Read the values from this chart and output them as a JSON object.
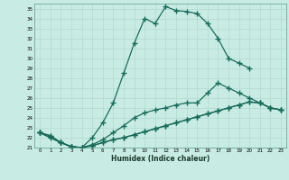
{
  "xlabel": "Humidex (Indice chaleur)",
  "bg_color": "#c8ece4",
  "line_color": "#1a6b5a",
  "grid_color": "#aad4cc",
  "xlim": [
    -0.5,
    23.5
  ],
  "ylim": [
    21,
    35.5
  ],
  "xticks": [
    0,
    1,
    2,
    3,
    4,
    5,
    6,
    7,
    8,
    9,
    10,
    11,
    12,
    13,
    14,
    15,
    16,
    17,
    18,
    19,
    20,
    21,
    22,
    23
  ],
  "yticks": [
    21,
    22,
    23,
    24,
    25,
    26,
    27,
    28,
    29,
    30,
    31,
    32,
    33,
    34,
    35
  ],
  "line1_x": [
    0,
    1,
    2,
    3,
    4,
    5,
    6,
    7,
    8,
    9,
    10,
    11,
    12,
    13,
    14,
    15,
    16,
    17,
    18,
    19,
    20
  ],
  "line1_y": [
    22.5,
    22.2,
    21.5,
    21.1,
    21.0,
    22.0,
    23.5,
    25.5,
    28.5,
    31.5,
    34.0,
    33.5,
    35.2,
    34.8,
    34.7,
    34.5,
    33.5,
    32.0,
    30.0,
    29.5,
    29.0
  ],
  "line2_x": [
    0,
    1,
    2,
    3,
    4,
    5,
    6,
    7,
    8,
    9,
    10,
    11,
    12,
    13,
    14,
    15,
    16,
    17,
    18,
    19,
    20,
    21,
    22,
    23
  ],
  "line2_y": [
    22.5,
    22.2,
    21.5,
    21.1,
    21.0,
    21.3,
    21.8,
    22.5,
    23.2,
    24.0,
    24.5,
    24.8,
    25.0,
    25.3,
    25.5,
    25.5,
    26.5,
    27.5,
    27.0,
    26.5,
    26.0,
    25.5,
    25.0,
    24.8
  ],
  "line3_x": [
    0,
    1,
    2,
    3,
    4,
    5,
    6,
    7,
    8,
    9,
    10,
    11,
    12,
    13,
    14,
    15,
    16,
    17,
    18,
    19,
    20,
    21,
    22,
    23
  ],
  "line3_y": [
    22.5,
    22.0,
    21.5,
    21.1,
    21.0,
    21.2,
    21.5,
    21.8,
    22.0,
    22.3,
    22.6,
    22.9,
    23.2,
    23.5,
    23.8,
    24.1,
    24.4,
    24.7,
    25.0,
    25.3,
    25.6,
    25.5,
    25.0,
    24.8
  ],
  "line4_x": [
    0,
    2,
    3,
    4,
    5,
    6,
    7,
    8,
    9,
    10,
    11,
    12,
    13,
    14,
    15,
    16,
    17,
    18,
    19,
    20,
    21,
    22,
    23
  ],
  "line4_y": [
    22.5,
    21.5,
    21.1,
    21.0,
    21.2,
    21.5,
    21.8,
    22.0,
    22.3,
    22.6,
    22.9,
    23.2,
    23.5,
    23.8,
    24.1,
    24.4,
    24.7,
    25.0,
    25.3,
    25.6,
    25.5,
    25.0,
    24.8
  ]
}
